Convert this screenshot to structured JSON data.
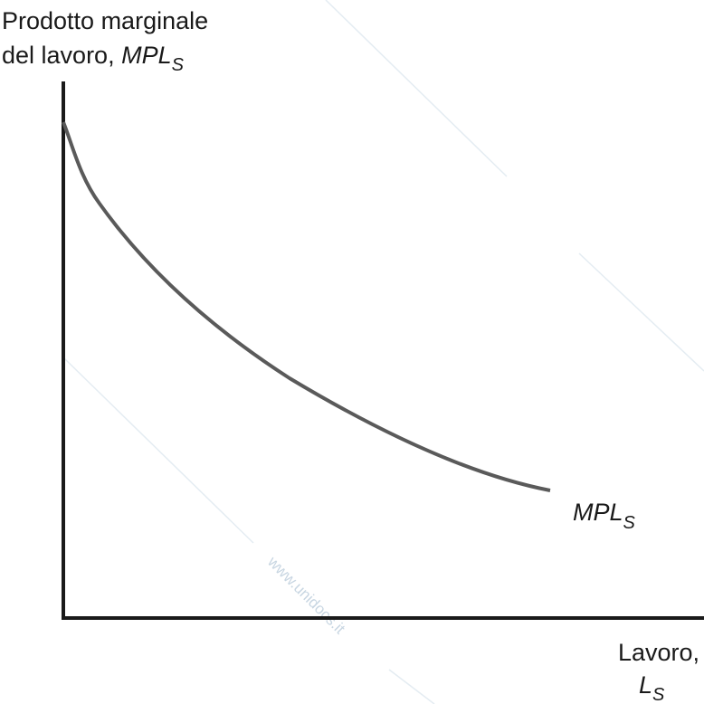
{
  "y_axis_label": {
    "line1": "Prodotto marginale",
    "line2": "del lavoro,",
    "symbol": "MPL",
    "subscript": "S"
  },
  "x_axis_label": {
    "line1": "Lavoro,",
    "symbol": "L",
    "subscript": "S"
  },
  "curve_label": {
    "symbol": "MPL",
    "subscript": "S"
  },
  "watermark": "www.unidocs.it"
}
